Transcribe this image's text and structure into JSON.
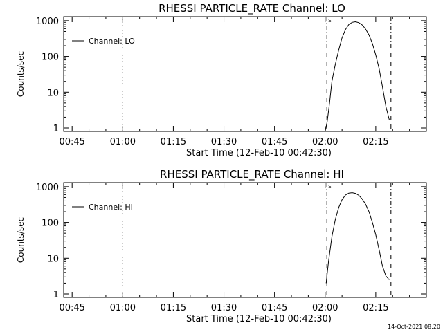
{
  "timestamp": "14-Oct-2021 08:20",
  "chart_data": [
    {
      "type": "line",
      "title": "RHESSI PARTICLE_RATE Channel: LO",
      "xlabel": "Start Time (12-Feb-10 00:42:30)",
      "ylabel": "Counts/sec",
      "yscale": "log",
      "xlim_min": [
        42.5,
        150
      ],
      "ylim": [
        0.8,
        1300
      ],
      "xticks_min": [
        45,
        60,
        75,
        90,
        105,
        120,
        135
      ],
      "xtick_labels": [
        "00:45",
        "01:00",
        "01:15",
        "01:30",
        "01:45",
        "02:00",
        "02:15"
      ],
      "yticks": [
        1,
        10,
        100,
        1000
      ],
      "ytick_labels": [
        "1",
        "10",
        "100",
        "1000"
      ],
      "legend": "Channel: LO",
      "vlines": [
        {
          "x_min": 60,
          "style": "dotted",
          "label": ""
        },
        {
          "x_min": 120.5,
          "style": "dashdot",
          "label": "S"
        },
        {
          "x_min": 139.5,
          "style": "dashdot",
          "label": ""
        }
      ],
      "series": [
        {
          "name": "Channel: LO",
          "x_min": [
            120,
            120.6,
            121.3,
            122,
            123,
            124,
            125,
            126,
            127,
            128,
            129,
            130,
            131,
            132,
            133,
            134,
            135,
            136,
            137,
            138,
            139
          ],
          "values": [
            0.8,
            1.5,
            5,
            20,
            60,
            150,
            330,
            560,
            780,
            900,
            930,
            880,
            760,
            580,
            400,
            230,
            110,
            45,
            14,
            4,
            1.7
          ]
        }
      ]
    },
    {
      "type": "line",
      "title": "RHESSI PARTICLE_RATE Channel: HI",
      "xlabel": "Start Time (12-Feb-10 00:42:30)",
      "ylabel": "Counts/sec",
      "yscale": "log",
      "xlim_min": [
        42.5,
        150
      ],
      "ylim": [
        0.8,
        1300
      ],
      "xticks_min": [
        45,
        60,
        75,
        90,
        105,
        120,
        135
      ],
      "xtick_labels": [
        "00:45",
        "01:00",
        "01:15",
        "01:30",
        "01:45",
        "02:00",
        "02:15"
      ],
      "yticks": [
        1,
        10,
        100,
        1000
      ],
      "ytick_labels": [
        "1",
        "10",
        "100",
        "1000"
      ],
      "legend": "Channel: HI",
      "vlines": [
        {
          "x_min": 60,
          "style": "dotted",
          "label": ""
        },
        {
          "x_min": 120.5,
          "style": "dashdot",
          "label": "S"
        },
        {
          "x_min": 139.5,
          "style": "dashdot",
          "label": ""
        }
      ],
      "series": [
        {
          "name": "Channel: HI",
          "x_min": [
            120.3,
            121,
            122,
            123,
            124,
            125,
            126,
            127,
            128,
            129,
            130,
            131,
            132,
            133,
            134,
            135,
            136,
            137,
            138,
            139
          ],
          "values": [
            2,
            8,
            40,
            120,
            260,
            430,
            580,
            660,
            680,
            650,
            570,
            450,
            320,
            200,
            100,
            45,
            17,
            6,
            3.2,
            2.5
          ]
        }
      ]
    }
  ]
}
